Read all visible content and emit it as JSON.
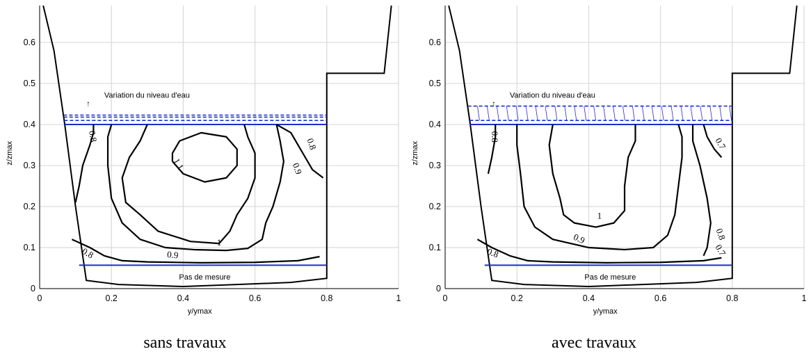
{
  "figure": {
    "captions": [
      "sans travaux",
      "avec travaux"
    ]
  },
  "chart_data": [
    {
      "type": "contour",
      "caption": "sans travaux",
      "xlabel": "y/ymax",
      "ylabel": "z/zmax",
      "xlim": [
        0,
        1
      ],
      "ylim": [
        0,
        0.69
      ],
      "xticks": [
        "0",
        "0.2",
        "0.4",
        "0.6",
        "0.8",
        "1"
      ],
      "yticks": [
        "0",
        "0.1",
        "0.2",
        "0.3",
        "0.4",
        "0.5",
        "0.6"
      ],
      "grid": true,
      "colors": {
        "contour": "#000000",
        "levels": "#1f2bd1",
        "grid": "#d9d9d9"
      },
      "annotations": {
        "water_level": "Variation du niveau d'eau",
        "measure_step": "Pas de mesure"
      },
      "boundary": [
        [
          0.01,
          0.69
        ],
        [
          0.04,
          0.58
        ],
        [
          0.07,
          0.4
        ],
        [
          0.1,
          0.2
        ],
        [
          0.13,
          0.02
        ],
        [
          0.22,
          0.01
        ],
        [
          0.4,
          0.005
        ],
        [
          0.55,
          0.01
        ],
        [
          0.7,
          0.015
        ],
        [
          0.8,
          0.025
        ],
        [
          0.8,
          0.525
        ],
        [
          0.96,
          0.525
        ],
        [
          0.98,
          0.69
        ]
      ],
      "water_lines": [
        {
          "z": 0.4,
          "style": "solid"
        },
        {
          "z": 0.41,
          "style": "dashed"
        },
        {
          "z": 0.418,
          "style": "dashed"
        },
        {
          "z": 0.423,
          "style": "dashed"
        }
      ],
      "measure_line_z": 0.057,
      "contours": [
        {
          "level": "0.8",
          "points": [
            [
              0.15,
              0.4
            ],
            [
              0.15,
              0.38
            ],
            [
              0.14,
              0.35
            ],
            [
              0.12,
              0.3
            ],
            [
              0.11,
              0.25
            ],
            [
              0.1,
              0.21
            ]
          ]
        },
        {
          "level": "0.8",
          "points": [
            [
              0.09,
              0.12
            ],
            [
              0.14,
              0.1
            ],
            [
              0.18,
              0.08
            ],
            [
              0.23,
              0.068
            ],
            [
              0.3,
              0.065
            ],
            [
              0.45,
              0.063
            ],
            [
              0.6,
              0.064
            ],
            [
              0.72,
              0.068
            ],
            [
              0.78,
              0.078
            ]
          ]
        },
        {
          "level": "0.8",
          "points": [
            [
              0.66,
              0.4
            ],
            [
              0.7,
              0.38
            ],
            [
              0.72,
              0.35
            ],
            [
              0.74,
              0.32
            ],
            [
              0.76,
              0.29
            ],
            [
              0.79,
              0.27
            ]
          ]
        },
        {
          "level": "0.9",
          "points": [
            [
              0.2,
              0.4
            ],
            [
              0.19,
              0.37
            ],
            [
              0.19,
              0.3
            ],
            [
              0.2,
              0.22
            ],
            [
              0.23,
              0.16
            ],
            [
              0.28,
              0.12
            ],
            [
              0.35,
              0.1
            ],
            [
              0.43,
              0.095
            ],
            [
              0.52,
              0.093
            ],
            [
              0.58,
              0.098
            ],
            [
              0.62,
              0.12
            ],
            [
              0.63,
              0.16
            ],
            [
              0.65,
              0.2
            ],
            [
              0.67,
              0.26
            ],
            [
              0.68,
              0.31
            ],
            [
              0.67,
              0.36
            ],
            [
              0.66,
              0.4
            ]
          ]
        },
        {
          "level": "1",
          "points": [
            [
              0.3,
              0.4
            ],
            [
              0.28,
              0.36
            ],
            [
              0.25,
              0.32
            ],
            [
              0.23,
              0.27
            ],
            [
              0.24,
              0.21
            ],
            [
              0.28,
              0.18
            ],
            [
              0.33,
              0.14
            ],
            [
              0.42,
              0.115
            ],
            [
              0.5,
              0.11
            ],
            [
              0.53,
              0.14
            ],
            [
              0.55,
              0.18
            ],
            [
              0.58,
              0.22
            ],
            [
              0.6,
              0.27
            ],
            [
              0.6,
              0.33
            ],
            [
              0.58,
              0.37
            ],
            [
              0.57,
              0.4
            ]
          ]
        },
        {
          "level": "1.1",
          "points": [
            [
              0.37,
              0.31
            ],
            [
              0.4,
              0.28
            ],
            [
              0.46,
              0.26
            ],
            [
              0.52,
              0.27
            ],
            [
              0.55,
              0.3
            ],
            [
              0.55,
              0.34
            ],
            [
              0.52,
              0.37
            ],
            [
              0.45,
              0.38
            ],
            [
              0.39,
              0.36
            ],
            [
              0.37,
              0.33
            ],
            [
              0.37,
              0.31
            ]
          ]
        }
      ],
      "contour_labels": [
        {
          "text": "0.8",
          "x": 0.14,
          "y": 0.37,
          "angle": 80
        },
        {
          "text": "0.9",
          "x": 0.37,
          "y": 0.075,
          "angle": 5
        },
        {
          "text": "1",
          "x": 0.5,
          "y": 0.105,
          "angle": 0
        },
        {
          "text": "1.1",
          "x": 0.38,
          "y": 0.3,
          "angle": 60
        },
        {
          "text": "0.8",
          "x": 0.13,
          "y": 0.08,
          "angle": 30
        },
        {
          "text": "0.9",
          "x": 0.71,
          "y": 0.29,
          "angle": 70
        },
        {
          "text": "0.8",
          "x": 0.75,
          "y": 0.35,
          "angle": 70
        }
      ]
    },
    {
      "type": "contour",
      "caption": "avec travaux",
      "xlabel": "y/ymax",
      "ylabel": "z/zmax",
      "xlim": [
        0,
        1
      ],
      "ylim": [
        0,
        0.69
      ],
      "xticks": [
        "0",
        "0.2",
        "0.4",
        "0.6",
        "0.8",
        "1"
      ],
      "yticks": [
        "0",
        "0.1",
        "0.2",
        "0.3",
        "0.4",
        "0.5",
        "0.6"
      ],
      "grid": true,
      "colors": {
        "contour": "#000000",
        "levels": "#1f2bd1",
        "grid": "#d9d9d9"
      },
      "annotations": {
        "water_level": "Variation du niveau d'eau",
        "measure_step": "Pas de mesure"
      },
      "boundary": [
        [
          0.01,
          0.69
        ],
        [
          0.04,
          0.58
        ],
        [
          0.07,
          0.4
        ],
        [
          0.1,
          0.2
        ],
        [
          0.13,
          0.02
        ],
        [
          0.22,
          0.01
        ],
        [
          0.4,
          0.005
        ],
        [
          0.55,
          0.01
        ],
        [
          0.7,
          0.015
        ],
        [
          0.8,
          0.025
        ],
        [
          0.8,
          0.525
        ],
        [
          0.96,
          0.525
        ],
        [
          0.98,
          0.69
        ]
      ],
      "water_lines": [
        {
          "z": 0.4,
          "style": "solid"
        },
        {
          "z": 0.41,
          "style": "dashed"
        },
        {
          "z": 0.445,
          "style": "dashed"
        }
      ],
      "water_hatch": true,
      "measure_line_z": 0.057,
      "contours": [
        {
          "level": "0.8",
          "points": [
            [
              0.14,
              0.4
            ],
            [
              0.14,
              0.37
            ],
            [
              0.13,
              0.32
            ],
            [
              0.12,
              0.28
            ]
          ]
        },
        {
          "level": "0.8",
          "points": [
            [
              0.09,
              0.12
            ],
            [
              0.13,
              0.1
            ],
            [
              0.18,
              0.08
            ],
            [
              0.23,
              0.068
            ],
            [
              0.3,
              0.065
            ],
            [
              0.45,
              0.063
            ],
            [
              0.6,
              0.064
            ],
            [
              0.72,
              0.068
            ],
            [
              0.77,
              0.075
            ]
          ]
        },
        {
          "level": "0.7",
          "points": [
            [
              0.72,
              0.4
            ],
            [
              0.73,
              0.37
            ],
            [
              0.75,
              0.34
            ],
            [
              0.77,
              0.32
            ]
          ]
        },
        {
          "level": "0.8",
          "points": [
            [
              0.69,
              0.4
            ],
            [
              0.69,
              0.36
            ],
            [
              0.71,
              0.3
            ],
            [
              0.73,
              0.22
            ],
            [
              0.74,
              0.16
            ],
            [
              0.73,
              0.1
            ],
            [
              0.72,
              0.08
            ]
          ]
        },
        {
          "level": "0.9",
          "points": [
            [
              0.2,
              0.4
            ],
            [
              0.2,
              0.35
            ],
            [
              0.21,
              0.28
            ],
            [
              0.22,
              0.2
            ],
            [
              0.25,
              0.15
            ],
            [
              0.3,
              0.12
            ],
            [
              0.4,
              0.1
            ],
            [
              0.5,
              0.095
            ],
            [
              0.58,
              0.1
            ],
            [
              0.62,
              0.13
            ],
            [
              0.64,
              0.18
            ],
            [
              0.65,
              0.25
            ],
            [
              0.66,
              0.32
            ],
            [
              0.66,
              0.37
            ],
            [
              0.65,
              0.4
            ]
          ]
        },
        {
          "level": "1",
          "points": [
            [
              0.3,
              0.4
            ],
            [
              0.29,
              0.35
            ],
            [
              0.3,
              0.28
            ],
            [
              0.32,
              0.22
            ],
            [
              0.33,
              0.18
            ],
            [
              0.36,
              0.16
            ],
            [
              0.42,
              0.15
            ],
            [
              0.47,
              0.16
            ],
            [
              0.5,
              0.19
            ],
            [
              0.5,
              0.25
            ],
            [
              0.51,
              0.32
            ],
            [
              0.53,
              0.36
            ],
            [
              0.53,
              0.4
            ]
          ]
        }
      ],
      "contour_labels": [
        {
          "text": "0.8",
          "x": 0.13,
          "y": 0.37,
          "angle": 90
        },
        {
          "text": "0.9",
          "x": 0.37,
          "y": 0.115,
          "angle": 25
        },
        {
          "text": "1",
          "x": 0.43,
          "y": 0.17,
          "angle": 0
        },
        {
          "text": "0.8",
          "x": 0.13,
          "y": 0.08,
          "angle": 20
        },
        {
          "text": "0.8",
          "x": 0.76,
          "y": 0.13,
          "angle": 70
        },
        {
          "text": "0.7",
          "x": 0.76,
          "y": 0.09,
          "angle": 60
        },
        {
          "text": "0.7",
          "x": 0.76,
          "y": 0.35,
          "angle": 60
        }
      ]
    }
  ]
}
